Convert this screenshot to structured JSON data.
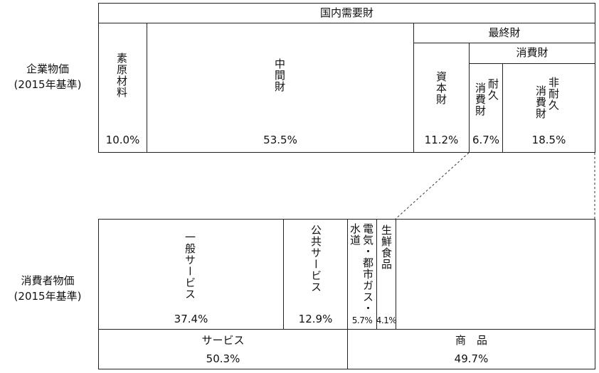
{
  "corporate": {
    "label_line1": "企業物価",
    "label_line2": "(2015年基準)",
    "header_domestic": "国内需要財",
    "header_final": "最終財",
    "header_consumer": "消費財",
    "cells": {
      "raw": {
        "name": "素原材料",
        "pct": "10.0%"
      },
      "intermediate": {
        "name": "中間財",
        "pct": "53.5%"
      },
      "capital": {
        "name": "資本財",
        "pct": "11.2%"
      },
      "durable_a": "耐久",
      "durable_b": "消費財",
      "durable_pct": "6.7%",
      "nondurable_a": "非耐",
      "nondurable_b": "消費財",
      "nondurable_c": "久",
      "nondurable_pct": "18.5%"
    }
  },
  "consumer": {
    "label_line1": "消費者物価",
    "label_line2": "(2015年基準)",
    "cells": {
      "general_services": {
        "name": "一般サービス",
        "pct": "37.4%"
      },
      "public_services": {
        "name": "公共サービス",
        "pct": "12.9%"
      },
      "utilities_a": "電気・都市ガス・",
      "utilities_b": "水道",
      "utilities_pct": "5.7%",
      "fresh_food": {
        "name": "生鮮食品",
        "pct": "4.1%"
      }
    },
    "totals": {
      "services": {
        "name": "サービス",
        "pct": "50.3%"
      },
      "goods": {
        "name": "商　品",
        "pct": "49.7%"
      }
    }
  }
}
